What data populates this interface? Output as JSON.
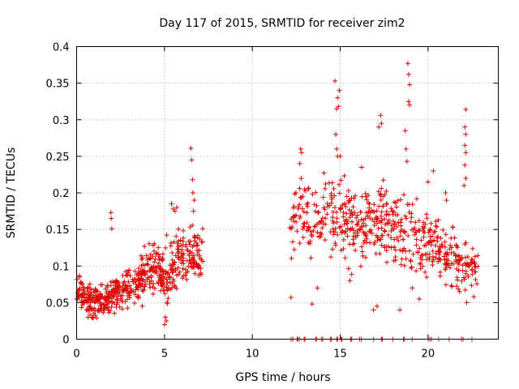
{
  "chart_data": {
    "type": "scatter",
    "title": "Day 117 of 2015, SRMTID for receiver zim2",
    "xlabel": "GPS time / hours",
    "ylabel": "SRMTID / TECUs",
    "xlim": [
      0,
      24
    ],
    "ylim": [
      0,
      0.4
    ],
    "xticks": [
      0,
      5,
      10,
      15,
      20
    ],
    "xtick_labels": [
      "0",
      "5",
      "10",
      "15",
      "20"
    ],
    "yticks": [
      0,
      0.05,
      0.1,
      0.15,
      0.2,
      0.25,
      0.3,
      0.35,
      0.4
    ],
    "ytick_labels": [
      "0",
      "0.05",
      "0.1",
      "0.15",
      "0.2",
      "0.25",
      "0.3",
      "0.35",
      "0.4"
    ],
    "grid": true,
    "marker": "+",
    "colors": {
      "points": "#e00000",
      "grid": "#a0a0a0",
      "axes": "#000000"
    },
    "series": [
      {
        "name": "SRMTID",
        "segments": [
          {
            "x_start": 0.0,
            "x_end": 1.5,
            "trend": [
              [
                0.0,
                0.06
              ],
              [
                0.8,
                0.055
              ],
              [
                1.5,
                0.05
              ]
            ],
            "spread": 0.018,
            "count": 130
          },
          {
            "x_start": 1.5,
            "x_end": 3.5,
            "trend": [
              [
                1.5,
                0.055
              ],
              [
                2.5,
                0.065
              ],
              [
                3.5,
                0.075
              ]
            ],
            "spread": 0.02,
            "count": 150
          },
          {
            "x_start": 3.5,
            "x_end": 5.0,
            "trend": [
              [
                3.5,
                0.08
              ],
              [
                4.2,
                0.1
              ],
              [
                5.0,
                0.09
              ]
            ],
            "spread": 0.025,
            "count": 130
          },
          {
            "x_start": 5.0,
            "x_end": 7.2,
            "trend": [
              [
                5.0,
                0.085
              ],
              [
                6.0,
                0.12
              ],
              [
                7.2,
                0.11
              ]
            ],
            "spread": 0.03,
            "count": 160
          },
          {
            "x_start": 12.1,
            "x_end": 14.0,
            "trend": [
              [
                12.1,
                0.17
              ],
              [
                13.0,
                0.17
              ],
              [
                14.0,
                0.15
              ]
            ],
            "spread": 0.04,
            "count": 80
          },
          {
            "x_start": 14.0,
            "x_end": 17.0,
            "trend": [
              [
                14.0,
                0.16
              ],
              [
                15.0,
                0.17
              ],
              [
                16.0,
                0.15
              ],
              [
                17.0,
                0.16
              ]
            ],
            "spread": 0.045,
            "count": 170
          },
          {
            "x_start": 17.0,
            "x_end": 20.0,
            "trend": [
              [
                17.0,
                0.15
              ],
              [
                18.0,
                0.16
              ],
              [
                19.0,
                0.14
              ],
              [
                20.0,
                0.13
              ]
            ],
            "spread": 0.045,
            "count": 170
          },
          {
            "x_start": 20.0,
            "x_end": 22.9,
            "trend": [
              [
                20.0,
                0.13
              ],
              [
                21.0,
                0.12
              ],
              [
                22.0,
                0.1
              ],
              [
                22.9,
                0.09
              ]
            ],
            "spread": 0.03,
            "count": 150
          }
        ],
        "outliers": [
          [
            1.95,
            0.173
          ],
          [
            1.97,
            0.165
          ],
          [
            2.0,
            0.151
          ],
          [
            6.5,
            0.261
          ],
          [
            6.55,
            0.245
          ],
          [
            6.6,
            0.218
          ],
          [
            6.62,
            0.2
          ],
          [
            6.7,
            0.19
          ],
          [
            6.65,
            0.175
          ],
          [
            5.4,
            0.185
          ],
          [
            5.5,
            0.178
          ],
          [
            5.6,
            0.175
          ],
          [
            5.7,
            0.18
          ],
          [
            5.0,
            0.02
          ],
          [
            5.05,
            0.03
          ],
          [
            5.1,
            0.025
          ],
          [
            12.2,
            0.057
          ],
          [
            13.4,
            0.048
          ],
          [
            13.7,
            0.07
          ],
          [
            12.75,
            0.26
          ],
          [
            12.8,
            0.255
          ],
          [
            12.7,
            0.24
          ],
          [
            14.7,
            0.353
          ],
          [
            14.95,
            0.34
          ],
          [
            14.85,
            0.33
          ],
          [
            14.9,
            0.318
          ],
          [
            14.8,
            0.315
          ],
          [
            14.75,
            0.28
          ],
          [
            14.8,
            0.26
          ],
          [
            14.85,
            0.25
          ],
          [
            15.0,
            0.25
          ],
          [
            15.55,
            0.08
          ],
          [
            16.9,
            0.04
          ],
          [
            17.1,
            0.045
          ],
          [
            17.3,
            0.306
          ],
          [
            17.35,
            0.295
          ],
          [
            17.2,
            0.29
          ],
          [
            18.85,
            0.377
          ],
          [
            18.9,
            0.362
          ],
          [
            18.95,
            0.348
          ],
          [
            18.9,
            0.325
          ],
          [
            18.95,
            0.32
          ],
          [
            18.7,
            0.285
          ],
          [
            18.75,
            0.26
          ],
          [
            18.8,
            0.243
          ],
          [
            19.1,
            0.07
          ],
          [
            19.5,
            0.055
          ],
          [
            18.4,
            0.04
          ],
          [
            20.3,
            0.23
          ],
          [
            20.0,
            0.215
          ],
          [
            21.0,
            0.2
          ],
          [
            21.05,
            0.19
          ],
          [
            22.15,
            0.314
          ],
          [
            22.1,
            0.29
          ],
          [
            22.15,
            0.28
          ],
          [
            22.1,
            0.265
          ],
          [
            22.15,
            0.255
          ],
          [
            22.1,
            0.238
          ],
          [
            22.15,
            0.22
          ],
          [
            22.05,
            0.21
          ],
          [
            21.8,
            0.065
          ],
          [
            22.2,
            0.05
          ],
          [
            22.6,
            0.058
          ]
        ],
        "baseline_y": 0.0,
        "baseline_x": [
          12.2,
          12.3,
          12.55,
          12.6,
          12.7,
          12.95,
          13.0,
          13.6,
          13.65,
          13.95,
          14.0,
          14.45,
          14.5,
          14.8,
          14.85,
          15.05,
          15.1,
          15.6,
          15.65,
          16.1,
          16.2,
          16.9,
          17.35,
          17.4,
          18.0,
          18.6,
          18.65,
          19.1,
          20.0,
          20.1,
          20.2,
          20.6,
          21.2,
          21.9,
          22.0,
          22.5
        ]
      }
    ]
  }
}
